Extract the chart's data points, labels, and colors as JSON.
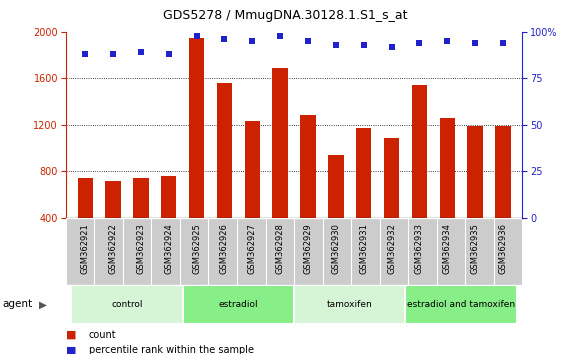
{
  "title": "GDS5278 / MmugDNA.30128.1.S1_s_at",
  "samples": [
    "GSM362921",
    "GSM362922",
    "GSM362923",
    "GSM362924",
    "GSM362925",
    "GSM362926",
    "GSM362927",
    "GSM362928",
    "GSM362929",
    "GSM362930",
    "GSM362931",
    "GSM362932",
    "GSM362933",
    "GSM362934",
    "GSM362935",
    "GSM362936"
  ],
  "counts": [
    740,
    720,
    740,
    760,
    1950,
    1560,
    1230,
    1690,
    1280,
    940,
    1170,
    1090,
    1540,
    1260,
    1190,
    1190
  ],
  "percentiles": [
    88,
    88,
    89,
    88,
    98,
    96,
    95,
    98,
    95,
    93,
    93,
    92,
    94,
    95,
    94,
    94
  ],
  "bar_color": "#cc2200",
  "dot_color": "#2222cc",
  "ylim_left": [
    400,
    2000
  ],
  "ylim_right": [
    0,
    100
  ],
  "yticks_left": [
    400,
    800,
    1200,
    1600,
    2000
  ],
  "yticks_right": [
    0,
    25,
    50,
    75,
    100
  ],
  "grid_values": [
    800,
    1200,
    1600
  ],
  "groups": [
    {
      "label": "control",
      "start": 0,
      "end": 3,
      "color": "#d6f5d6"
    },
    {
      "label": "estradiol",
      "start": 4,
      "end": 7,
      "color": "#88ee88"
    },
    {
      "label": "tamoxifen",
      "start": 8,
      "end": 11,
      "color": "#d6f5d6"
    },
    {
      "label": "estradiol and tamoxifen",
      "start": 12,
      "end": 15,
      "color": "#88ee88"
    }
  ],
  "legend_count_color": "#cc2200",
  "legend_dot_color": "#2222cc",
  "agent_label": "agent",
  "bg_color": "#ffffff",
  "plot_bg": "#ffffff",
  "label_bg": "#cccccc",
  "bar_bottom": 400
}
